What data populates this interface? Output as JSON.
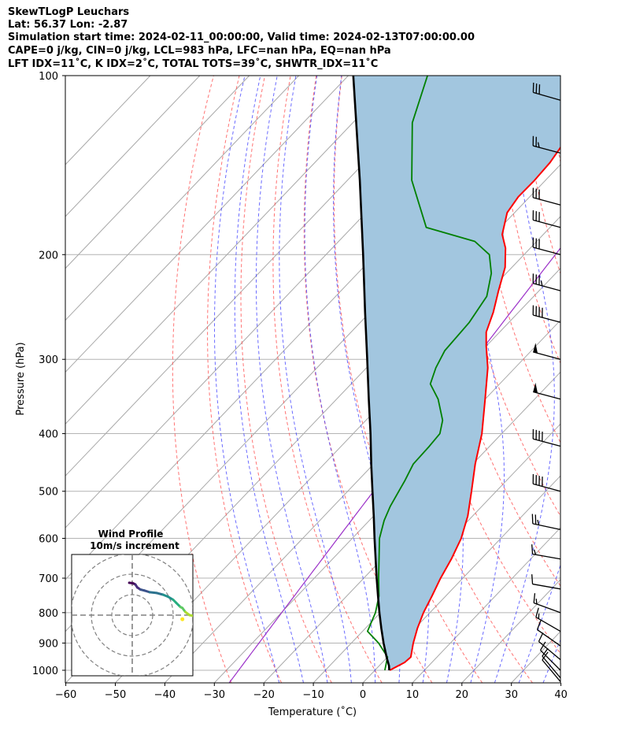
{
  "header": {
    "line1": "SkewTLogP Leuchars",
    "line2": "Lat: 56.37   Lon: -2.87",
    "line3": "Simulation start time: 2024-02-11_00:00:00, Valid time: 2024-02-13T07:00:00.00",
    "line4": "CAPE=0 j/kg, CIN=0 j/kg, LCL=983 hPa, LFC=nan hPa, EQ=nan hPa",
    "line5": "LFT IDX=11˚C, K IDX=2˚C, TOTAL TOTS=39˚C, SHWTR_IDX=11˚C"
  },
  "colors": {
    "temperature": "#ff0000",
    "dewpoint": "#008000",
    "parcel": "#000000",
    "shading": "#a2c6df",
    "dry_adiabat": "#ff5a5a",
    "moist_adiabat": "#3a3aff",
    "isotherm": "#a8a8a8",
    "isobar": "#b4b4b4",
    "mixing_ratio": "#9b30c8"
  },
  "chart_data": {
    "type": "line",
    "title": "SkewTLogP Leuchars",
    "xlabel": "Temperature (˚C)",
    "ylabel": "Pressure (hPa)",
    "xlim": [
      -60,
      40
    ],
    "ylim": [
      1050,
      100
    ],
    "x_ticks": [
      "−60",
      "−50",
      "−40",
      "−30",
      "−20",
      "−10",
      "0",
      "10",
      "20",
      "30",
      "40"
    ],
    "x_tick_values": [
      -60,
      -50,
      -40,
      -30,
      -20,
      -10,
      0,
      10,
      20,
      30,
      40
    ],
    "y_ticks": [
      "100",
      "200",
      "300",
      "400",
      "500",
      "600",
      "700",
      "800",
      "900",
      "1000"
    ],
    "y_tick_values": [
      100,
      200,
      300,
      400,
      500,
      600,
      700,
      800,
      900,
      1000
    ],
    "series": [
      {
        "name": "Temperature",
        "color": "#ff0000",
        "points": [
          [
            1000,
            3.0
          ],
          [
            970,
            4.5
          ],
          [
            950,
            4.7
          ],
          [
            900,
            2.5
          ],
          [
            850,
            0.5
          ],
          [
            800,
            -1.3
          ],
          [
            750,
            -2.8
          ],
          [
            700,
            -4.5
          ],
          [
            650,
            -6.0
          ],
          [
            600,
            -8.0
          ],
          [
            550,
            -11.0
          ],
          [
            500,
            -15.0
          ],
          [
            450,
            -19.5
          ],
          [
            400,
            -24.0
          ],
          [
            350,
            -30.0
          ],
          [
            310,
            -35.5
          ],
          [
            285,
            -40.0
          ],
          [
            270,
            -42.7
          ],
          [
            250,
            -45.1
          ],
          [
            230,
            -48.2
          ],
          [
            210,
            -51.4
          ],
          [
            195,
            -55.0
          ],
          [
            185,
            -58.3
          ],
          [
            170,
            -61.5
          ],
          [
            160,
            -62.3
          ],
          [
            150,
            -62.2
          ],
          [
            140,
            -62.5
          ],
          [
            130,
            -63.5
          ],
          [
            120,
            -65.0
          ],
          [
            110,
            -66.0
          ],
          [
            100,
            -67.0
          ]
        ]
      },
      {
        "name": "Dewpoint",
        "color": "#008000",
        "points": [
          [
            1000,
            2.0
          ],
          [
            950,
            0.0
          ],
          [
            900,
            -4.5
          ],
          [
            860,
            -9.0
          ],
          [
            800,
            -11.0
          ],
          [
            750,
            -13.5
          ],
          [
            700,
            -17.0
          ],
          [
            600,
            -24.5
          ],
          [
            560,
            -27.0
          ],
          [
            530,
            -28.5
          ],
          [
            480,
            -30.5
          ],
          [
            450,
            -32.0
          ],
          [
            420,
            -32.2
          ],
          [
            400,
            -32.5
          ],
          [
            380,
            -34.5
          ],
          [
            350,
            -39.5
          ],
          [
            330,
            -44.0
          ],
          [
            310,
            -46.0
          ],
          [
            290,
            -47.5
          ],
          [
            260,
            -48.0
          ],
          [
            235,
            -49.5
          ],
          [
            215,
            -53.0
          ],
          [
            200,
            -57.0
          ],
          [
            190,
            -62.5
          ],
          [
            180,
            -75.0
          ],
          [
            150,
            -87.0
          ],
          [
            120,
            -98.0
          ],
          [
            100,
            -104.0
          ]
        ]
      },
      {
        "name": "Parcel",
        "color": "#000000",
        "points": [
          [
            1000,
            2.9
          ],
          [
            983,
            2.0
          ],
          [
            950,
            -0.2
          ],
          [
            900,
            -3.5
          ],
          [
            850,
            -6.8
          ],
          [
            800,
            -10.2
          ],
          [
            750,
            -13.7
          ],
          [
            700,
            -17.4
          ],
          [
            650,
            -21.3
          ],
          [
            600,
            -25.5
          ],
          [
            550,
            -30.0
          ],
          [
            500,
            -35.0
          ],
          [
            450,
            -40.5
          ],
          [
            400,
            -46.5
          ],
          [
            350,
            -53.5
          ],
          [
            300,
            -61.5
          ],
          [
            250,
            -71.0
          ],
          [
            200,
            -82.5
          ],
          [
            150,
            -97.5
          ],
          [
            100,
            -119.0
          ]
        ]
      }
    ],
    "wind_barbs": [
      {
        "p": 110,
        "dir": 286,
        "kt": 30
      },
      {
        "p": 135,
        "dir": 285,
        "kt": 25
      },
      {
        "p": 165,
        "dir": 285,
        "kt": 30
      },
      {
        "p": 180,
        "dir": 285,
        "kt": 30
      },
      {
        "p": 200,
        "dir": 285,
        "kt": 30
      },
      {
        "p": 230,
        "dir": 285,
        "kt": 35
      },
      {
        "p": 260,
        "dir": 285,
        "kt": 40
      },
      {
        "p": 300,
        "dir": 285,
        "kt": 50
      },
      {
        "p": 350,
        "dir": 285,
        "kt": 50
      },
      {
        "p": 420,
        "dir": 285,
        "kt": 40
      },
      {
        "p": 500,
        "dir": 285,
        "kt": 40
      },
      {
        "p": 580,
        "dir": 282,
        "kt": 25
      },
      {
        "p": 650,
        "dir": 280,
        "kt": 15
      },
      {
        "p": 730,
        "dir": 280,
        "kt": 10
      },
      {
        "p": 800,
        "dir": 290,
        "kt": 15
      },
      {
        "p": 860,
        "dir": 300,
        "kt": 15
      },
      {
        "p": 910,
        "dir": 305,
        "kt": 10
      },
      {
        "p": 960,
        "dir": 310,
        "kt": 10
      },
      {
        "p": 1000,
        "dir": 315,
        "kt": 10
      },
      {
        "p": 1030,
        "dir": 320,
        "kt": 10
      },
      {
        "p": 1045,
        "dir": 320,
        "kt": 10
      }
    ],
    "hodograph": {
      "title": "Wind Profile",
      "subtitle": "10m/s increment",
      "rings_ms": [
        10,
        20,
        30
      ],
      "points": [
        [
          -1.5,
          -15.8
        ],
        [
          0.5,
          -15.5
        ],
        [
          1.5,
          -15.0
        ],
        [
          2.5,
          -13.5
        ],
        [
          4.0,
          -12.5
        ],
        [
          6.0,
          -12.0
        ],
        [
          8.5,
          -11.2
        ],
        [
          12.0,
          -10.8
        ],
        [
          15.0,
          -10.0
        ],
        [
          17.5,
          -9.0
        ],
        [
          20.0,
          -7.5
        ],
        [
          21.5,
          -6.0
        ],
        [
          23.5,
          -4.0
        ],
        [
          24.5,
          -3.5
        ],
        [
          26.0,
          -1.5
        ],
        [
          28.0,
          0.0
        ],
        [
          30.5,
          0.5
        ],
        [
          31.5,
          -2.0
        ]
      ],
      "outliers": [
        [
          24.5,
          2.0
        ]
      ]
    }
  }
}
